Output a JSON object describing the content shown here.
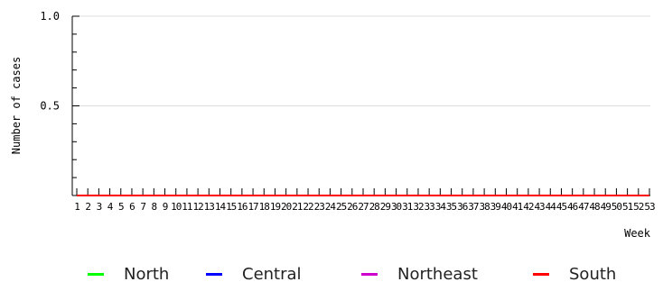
{
  "chart_data": {
    "type": "line",
    "xlabel": "Week",
    "ylabel": "Number of cases",
    "ylim": [
      0,
      1.0
    ],
    "yticks": [
      {
        "value": 1.0,
        "label": "1.0"
      },
      {
        "value": 0.5,
        "label": "0.5"
      }
    ],
    "x": [
      1,
      2,
      3,
      4,
      5,
      6,
      7,
      8,
      9,
      10,
      11,
      12,
      13,
      14,
      15,
      16,
      17,
      18,
      19,
      20,
      21,
      22,
      23,
      24,
      25,
      26,
      27,
      28,
      29,
      30,
      31,
      32,
      33,
      34,
      35,
      36,
      37,
      38,
      39,
      40,
      41,
      42,
      43,
      44,
      45,
      46,
      47,
      48,
      49,
      50,
      51,
      52,
      53
    ],
    "grid": true,
    "legend_position": "bottom",
    "series": [
      {
        "name": "North",
        "color": "#00ff00",
        "values": [
          0,
          0,
          0,
          0,
          0,
          0,
          0,
          0,
          0,
          0,
          0,
          0,
          0,
          0,
          0,
          0,
          0,
          0,
          0,
          0,
          0,
          0,
          0,
          0,
          0,
          0,
          0,
          0,
          0,
          0,
          0,
          0,
          0,
          0,
          0,
          0,
          0,
          0,
          0,
          0,
          0,
          0,
          0,
          0,
          0,
          0,
          0,
          0,
          0,
          0,
          0,
          0,
          0
        ]
      },
      {
        "name": "Central",
        "color": "#0000ff",
        "values": [
          0,
          0,
          0,
          0,
          0,
          0,
          0,
          0,
          0,
          0,
          0,
          0,
          0,
          0,
          0,
          0,
          0,
          0,
          0,
          0,
          0,
          0,
          0,
          0,
          0,
          0,
          0,
          0,
          0,
          0,
          0,
          0,
          0,
          0,
          0,
          0,
          0,
          0,
          0,
          0,
          0,
          0,
          0,
          0,
          0,
          0,
          0,
          0,
          0,
          0,
          0,
          0,
          0
        ]
      },
      {
        "name": "Northeast",
        "color": "#cc00cc",
        "values": [
          0,
          0,
          0,
          0,
          0,
          0,
          0,
          0,
          0,
          0,
          0,
          0,
          0,
          0,
          0,
          0,
          0,
          0,
          0,
          0,
          0,
          0,
          0,
          0,
          0,
          0,
          0,
          0,
          0,
          0,
          0,
          0,
          0,
          0,
          0,
          0,
          0,
          0,
          0,
          0,
          0,
          0,
          0,
          0,
          0,
          0,
          0,
          0,
          0,
          0,
          0,
          0,
          0
        ]
      },
      {
        "name": "South",
        "color": "#ff0000",
        "values": [
          0,
          0,
          0,
          0,
          0,
          0,
          0,
          0,
          0,
          0,
          0,
          0,
          0,
          0,
          0,
          0,
          0,
          0,
          0,
          0,
          0,
          0,
          0,
          0,
          0,
          0,
          0,
          0,
          0,
          0,
          0,
          0,
          0,
          0,
          0,
          0,
          0,
          0,
          0,
          0,
          0,
          0,
          0,
          0,
          0,
          0,
          0,
          0,
          0,
          0,
          0,
          0,
          0
        ]
      }
    ]
  }
}
